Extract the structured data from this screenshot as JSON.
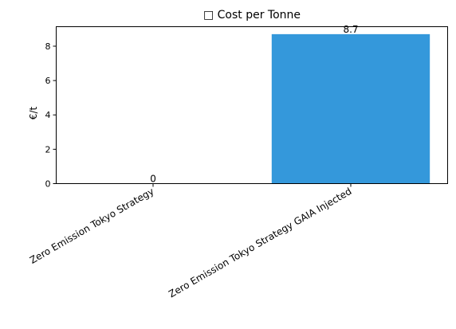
{
  "chart_data": {
    "type": "bar",
    "title": "□ Cost per Tonne",
    "xlabel": "",
    "ylabel": "€/t",
    "categories": [
      "Zero Emission Tokyo Strategy",
      "Zero Emission Tokyo Strategy GAIA Injected"
    ],
    "values": [
      0,
      8.7
    ],
    "value_labels": [
      "0",
      "8.7"
    ],
    "ylim": [
      0,
      9.135
    ],
    "yticks": [
      0,
      2,
      4,
      6,
      8
    ],
    "grid": false,
    "legend": "none",
    "bar_color": "#3498db"
  }
}
